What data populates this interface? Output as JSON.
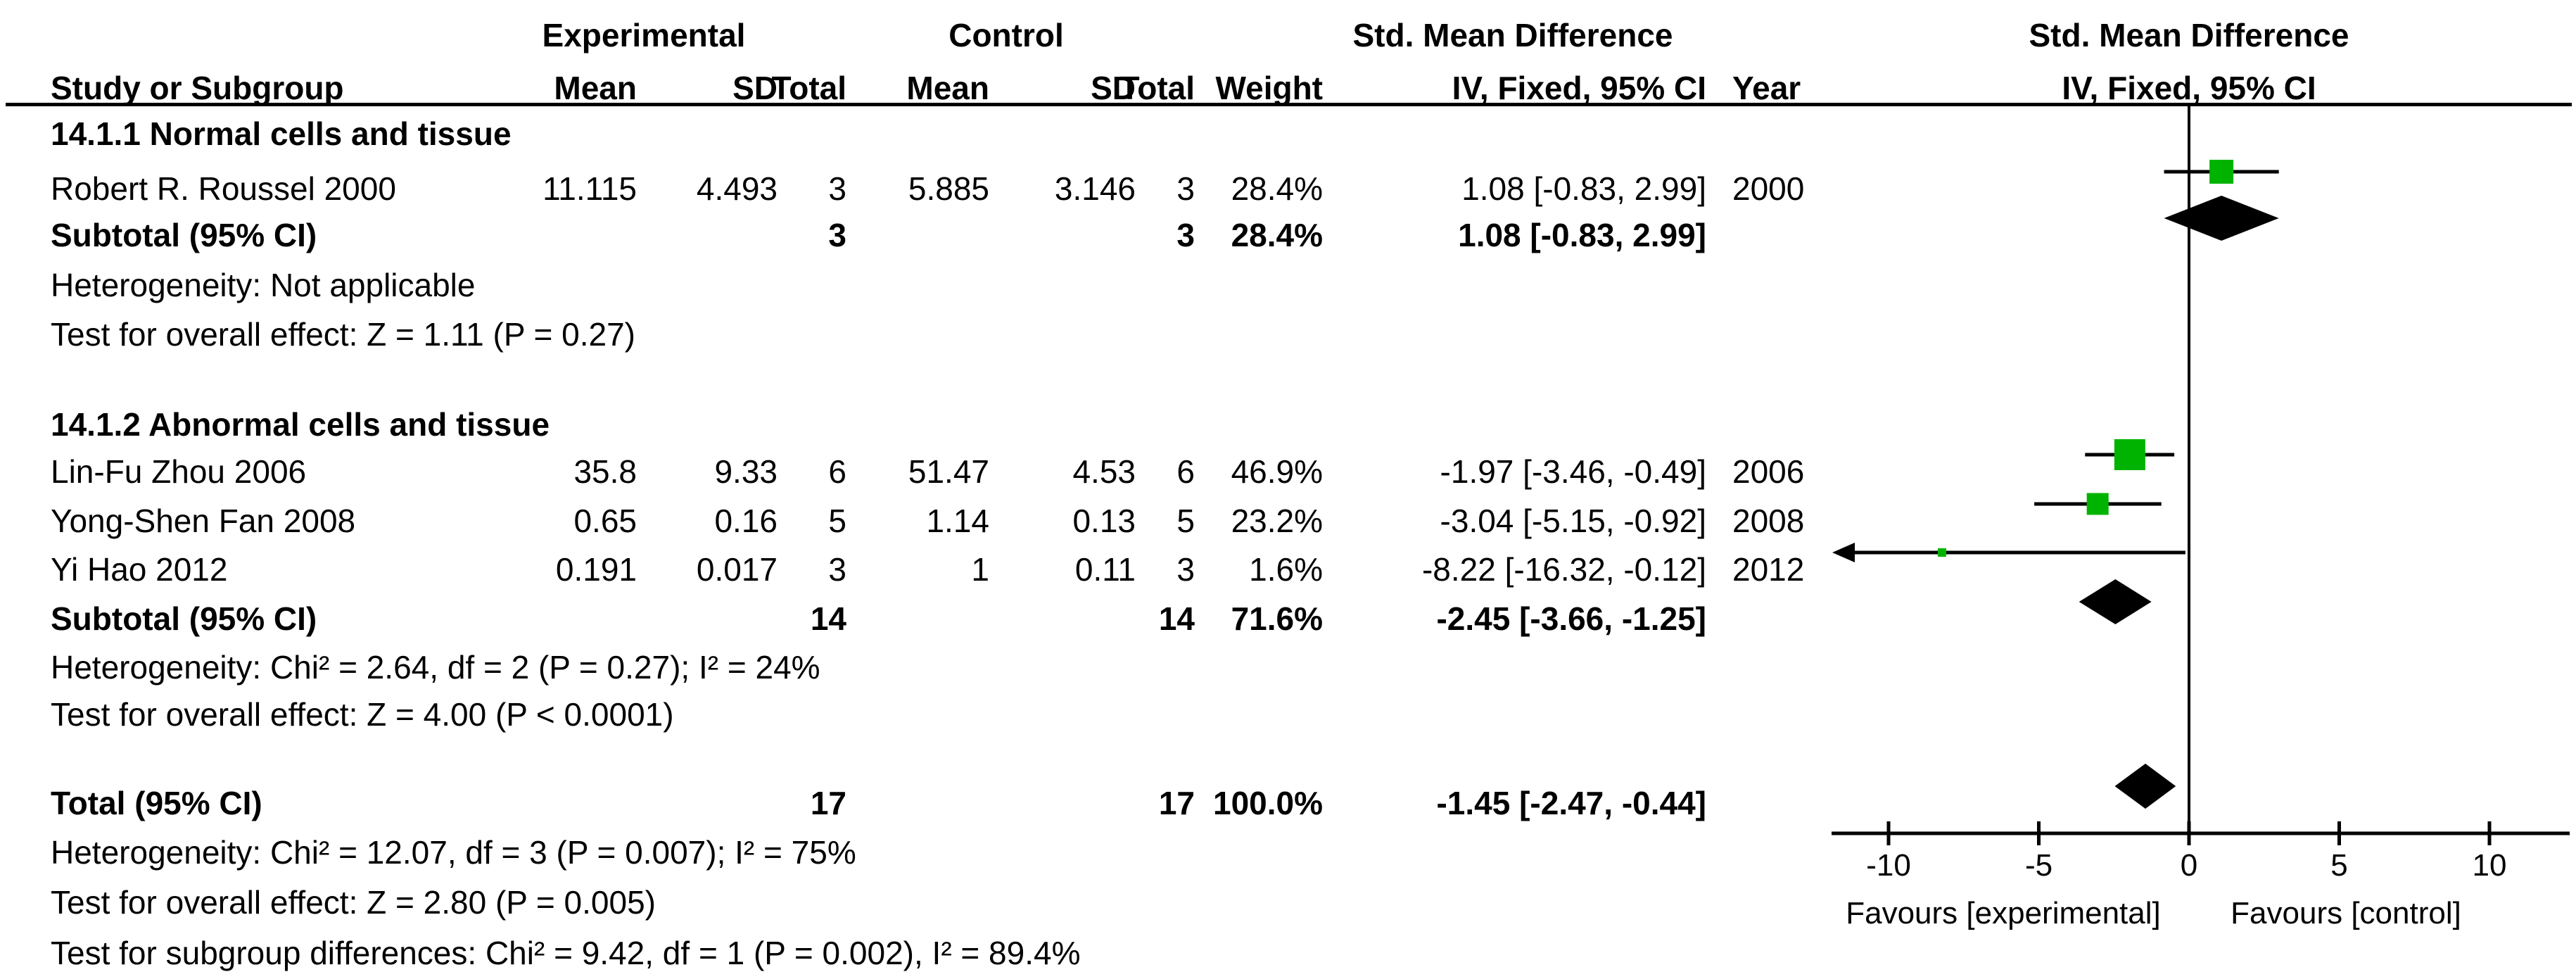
{
  "colors": {
    "marker_green": "#00b300",
    "line_black": "#000000"
  },
  "header": {
    "group1": "Experimental",
    "group2": "Control",
    "smd": "Std. Mean Difference",
    "method": "IV, Fixed, 95% CI",
    "col_study": "Study or Subgroup",
    "col_mean": "Mean",
    "col_sd": "SD",
    "col_total": "Total",
    "col_weight": "Weight",
    "col_method_year": "IV, Fixed, 95% CI",
    "col_year": "Year"
  },
  "sections": [
    {
      "title": "14.1.1 Normal cells and tissue",
      "studies": [
        {
          "name": "Robert R. Roussel 2000",
          "mean_e": "11.115",
          "sd_e": "4.493",
          "total_e": "3",
          "mean_c": "5.885",
          "sd_c": "3.146",
          "total_c": "3",
          "weight": "28.4%",
          "ci": "1.08 [-0.83, 2.99]",
          "year": "2000"
        }
      ],
      "subtotal": {
        "label": "Subtotal (95% CI)",
        "total_e": "3",
        "total_c": "3",
        "weight": "28.4%",
        "ci": "1.08 [-0.83, 2.99]"
      },
      "heterogeneity": "Heterogeneity: Not applicable",
      "overall_effect": "Test for overall effect: Z = 1.11 (P = 0.27)"
    },
    {
      "title": "14.1.2 Abnormal cells and tissue",
      "studies": [
        {
          "name": "Lin-Fu Zhou 2006",
          "mean_e": "35.8",
          "sd_e": "9.33",
          "total_e": "6",
          "mean_c": "51.47",
          "sd_c": "4.53",
          "total_c": "6",
          "weight": "46.9%",
          "ci": "-1.97 [-3.46, -0.49]",
          "year": "2006"
        },
        {
          "name": "Yong-Shen Fan 2008",
          "mean_e": "0.65",
          "sd_e": "0.16",
          "total_e": "5",
          "mean_c": "1.14",
          "sd_c": "0.13",
          "total_c": "5",
          "weight": "23.2%",
          "ci": "-3.04 [-5.15, -0.92]",
          "year": "2008"
        },
        {
          "name": "Yi Hao 2012",
          "mean_e": "0.191",
          "sd_e": "0.017",
          "total_e": "3",
          "mean_c": "1",
          "sd_c": "0.11",
          "total_c": "3",
          "weight": "1.6%",
          "ci": "-8.22 [-16.32, -0.12]",
          "year": "2012"
        }
      ],
      "subtotal": {
        "label": "Subtotal (95% CI)",
        "total_e": "14",
        "total_c": "14",
        "weight": "71.6%",
        "ci": "-2.45 [-3.66, -1.25]"
      },
      "heterogeneity": "Heterogeneity: Chi² = 2.64, df = 2 (P = 0.27); I² = 24%",
      "overall_effect": "Test for overall effect: Z = 4.00 (P < 0.0001)"
    }
  ],
  "total_row": {
    "label": "Total (95% CI)",
    "total_e": "17",
    "total_c": "17",
    "weight": "100.0%",
    "ci": "-1.45 [-2.47, -0.44]"
  },
  "footer": {
    "heterogeneity": "Heterogeneity: Chi² = 12.07, df = 3 (P = 0.007); I² = 75%",
    "overall_effect": "Test for overall effect: Z = 2.80 (P = 0.005)",
    "subgroup_differences": "Test for subgroup differences: Chi² = 9.42, df = 1 (P = 0.002), I² = 89.4%"
  },
  "axis": {
    "tick_labels": [
      "-10",
      "-5",
      "0",
      "5",
      "10"
    ],
    "favours_left": "Favours [experimental]",
    "favours_right": "Favours [control]"
  },
  "chart_data": {
    "type": "forest",
    "effect_measure": "Std. Mean Difference",
    "model": "IV, Fixed, 95% CI",
    "x_axis": {
      "ticks": [
        -10,
        -5,
        0,
        5,
        10
      ],
      "min": -11.7,
      "max": 12.7,
      "zero_line": 0
    },
    "groups": [
      {
        "label": "14.1.1 Normal cells and tissue",
        "studies": [
          {
            "label": "Robert R. Roussel 2000",
            "est": 1.08,
            "lo": -0.83,
            "hi": 2.99,
            "weight": 28.4,
            "year": 2000
          }
        ],
        "subtotal": {
          "est": 1.08,
          "lo": -0.83,
          "hi": 2.99,
          "weight": 28.4
        }
      },
      {
        "label": "14.1.2 Abnormal cells and tissue",
        "studies": [
          {
            "label": "Lin-Fu Zhou 2006",
            "est": -1.97,
            "lo": -3.46,
            "hi": -0.49,
            "weight": 46.9,
            "year": 2006
          },
          {
            "label": "Yong-Shen Fan 2008",
            "est": -3.04,
            "lo": -5.15,
            "hi": -0.92,
            "weight": 23.2,
            "year": 2008
          },
          {
            "label": "Yi Hao 2012",
            "est": -8.22,
            "lo": -16.32,
            "hi": -0.12,
            "weight": 1.6,
            "year": 2012
          }
        ],
        "subtotal": {
          "est": -2.45,
          "lo": -3.66,
          "hi": -1.25,
          "weight": 71.6
        }
      }
    ],
    "total": {
      "est": -1.45,
      "lo": -2.47,
      "hi": -0.44,
      "weight": 100.0
    }
  }
}
